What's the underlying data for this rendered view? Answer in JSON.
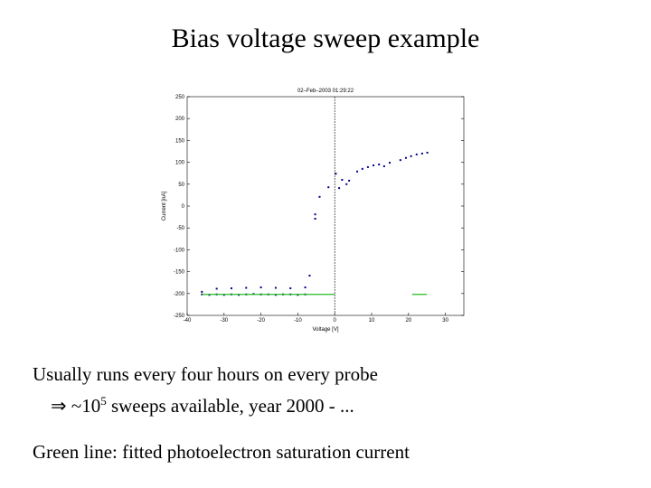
{
  "slide": {
    "title": "Bias voltage sweep example",
    "lines": [
      "Usually runs every four hours on every probe",
      {
        "prefix": "⇒ ~10",
        "sup": "5",
        "suffix": " sweeps available, year 2000 - ..."
      },
      "Green line: fitted photoelectron saturation current"
    ]
  },
  "chart_data": {
    "type": "scatter",
    "title": "02–Feb–2003 01:29:22",
    "x_label": "Voltage [V]",
    "y_label": "Current [nA]",
    "xlim": [
      -40,
      35
    ],
    "xticks": [
      -40,
      -30,
      -20,
      -10,
      0,
      10,
      20,
      30
    ],
    "ylim": [
      -250,
      250
    ],
    "yticks": [
      -250,
      -200,
      -150,
      -100,
      -50,
      0,
      50,
      100,
      150,
      200,
      250
    ],
    "vlines": [
      0
    ],
    "series": [
      {
        "color": "#00008b",
        "mode": "points",
        "x": [
          -36,
          -34,
          -32,
          -30,
          -28,
          -26,
          -24,
          -22,
          -20,
          -18,
          -16,
          -14,
          -12,
          -10,
          -8,
          -36,
          -32,
          -28,
          -24,
          -20,
          -16,
          -12,
          -8,
          -6.8,
          -5.3,
          -5.3,
          -4.1,
          -1.7,
          0.3,
          1.2,
          2,
          3.2,
          3.9,
          6.1,
          7.5,
          9,
          10.5,
          12,
          13.4,
          14.9,
          17.8,
          19.3,
          20.7,
          22.2,
          23.7,
          25.1
        ],
        "values": [
          -202,
          -203,
          -202,
          -203,
          -202,
          -203,
          -202,
          -201,
          -202,
          -202,
          -203,
          -202,
          -202,
          -203,
          -202,
          -196,
          -189,
          -188,
          -187,
          -186,
          -187,
          -188,
          -186,
          -159,
          -19,
          -29,
          21,
          43,
          74,
          41,
          60,
          50,
          58,
          79,
          85,
          89,
          93,
          95,
          91,
          99,
          105,
          110,
          114,
          118,
          120,
          122
        ]
      },
      {
        "color": "#22bb22",
        "mode": "line",
        "x": [
          -36,
          0
        ],
        "values": [
          -202,
          -202
        ]
      },
      {
        "color": "#22bb22",
        "mode": "line",
        "x": [
          21,
          25
        ],
        "values": [
          -202,
          -202
        ]
      }
    ]
  }
}
